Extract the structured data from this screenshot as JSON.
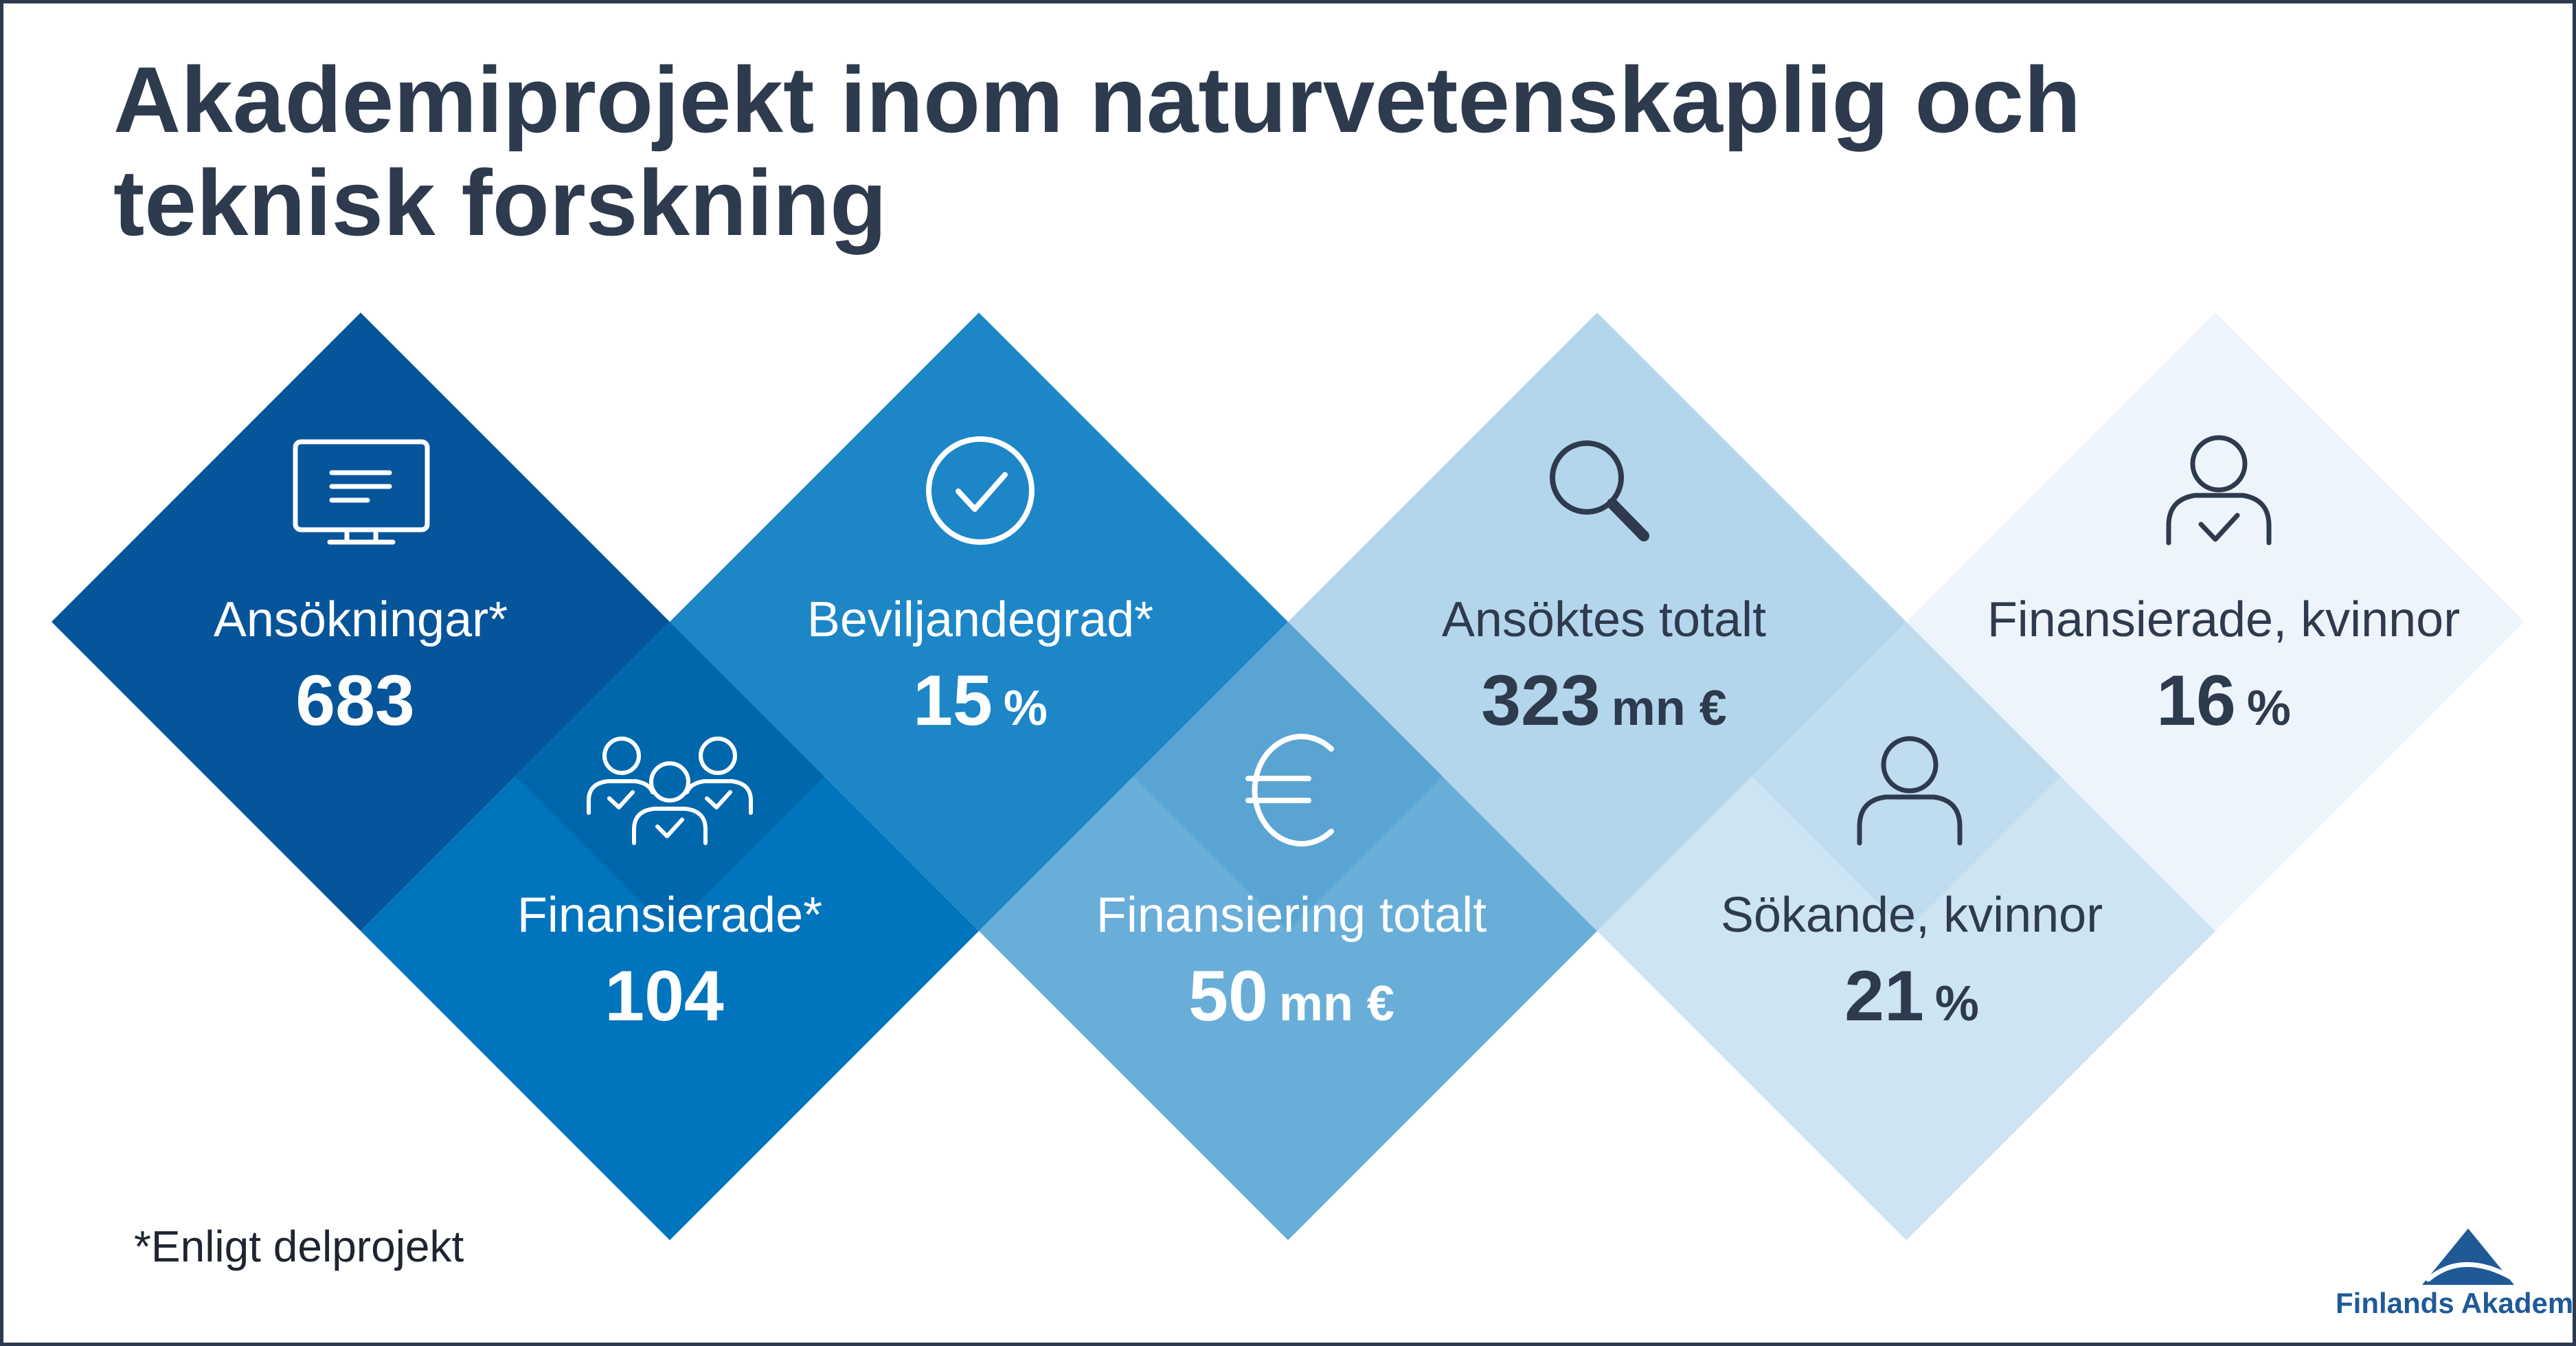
{
  "title": "Akademiprojekt inom naturvetenskaplig och teknisk forskning",
  "tiles": {
    "applications": {
      "label": "Ansökningar*",
      "value": "683",
      "unit": "",
      "icon": "monitor-icon",
      "color": "#06559b"
    },
    "funded": {
      "label": "Finansierade*",
      "value": "104",
      "unit": "",
      "icon": "people-check-icon",
      "color": "#0074bd"
    },
    "approval_rate": {
      "label": "Beviljandegrad*",
      "value": "15",
      "unit": "%",
      "icon": "check-circle-icon",
      "color": "#1c86c7"
    },
    "funding_total": {
      "label": "Finansiering totalt",
      "value": "50",
      "unit": "mn €",
      "icon": "euro-icon",
      "color": "#68aed9"
    },
    "applied_total": {
      "label": "Ansöktes totalt",
      "value": "323",
      "unit": "mn €",
      "icon": "magnifier-icon",
      "color": "#b4d6ec"
    },
    "applicants_women": {
      "label": "Sökande, kvinnor",
      "value": "21",
      "unit": "%",
      "icon": "person-icon",
      "color": "#cde4f3"
    },
    "funded_women": {
      "label": "Finansierade, kvinnor",
      "value": "16",
      "unit": "%",
      "icon": "person-check-icon",
      "color": "#edf4fb"
    }
  },
  "footnote": "*Enligt delprojekt",
  "logo": {
    "name": "Finlands Akademi",
    "icon": "triangle-logo-icon",
    "color": "#1f5a97"
  }
}
